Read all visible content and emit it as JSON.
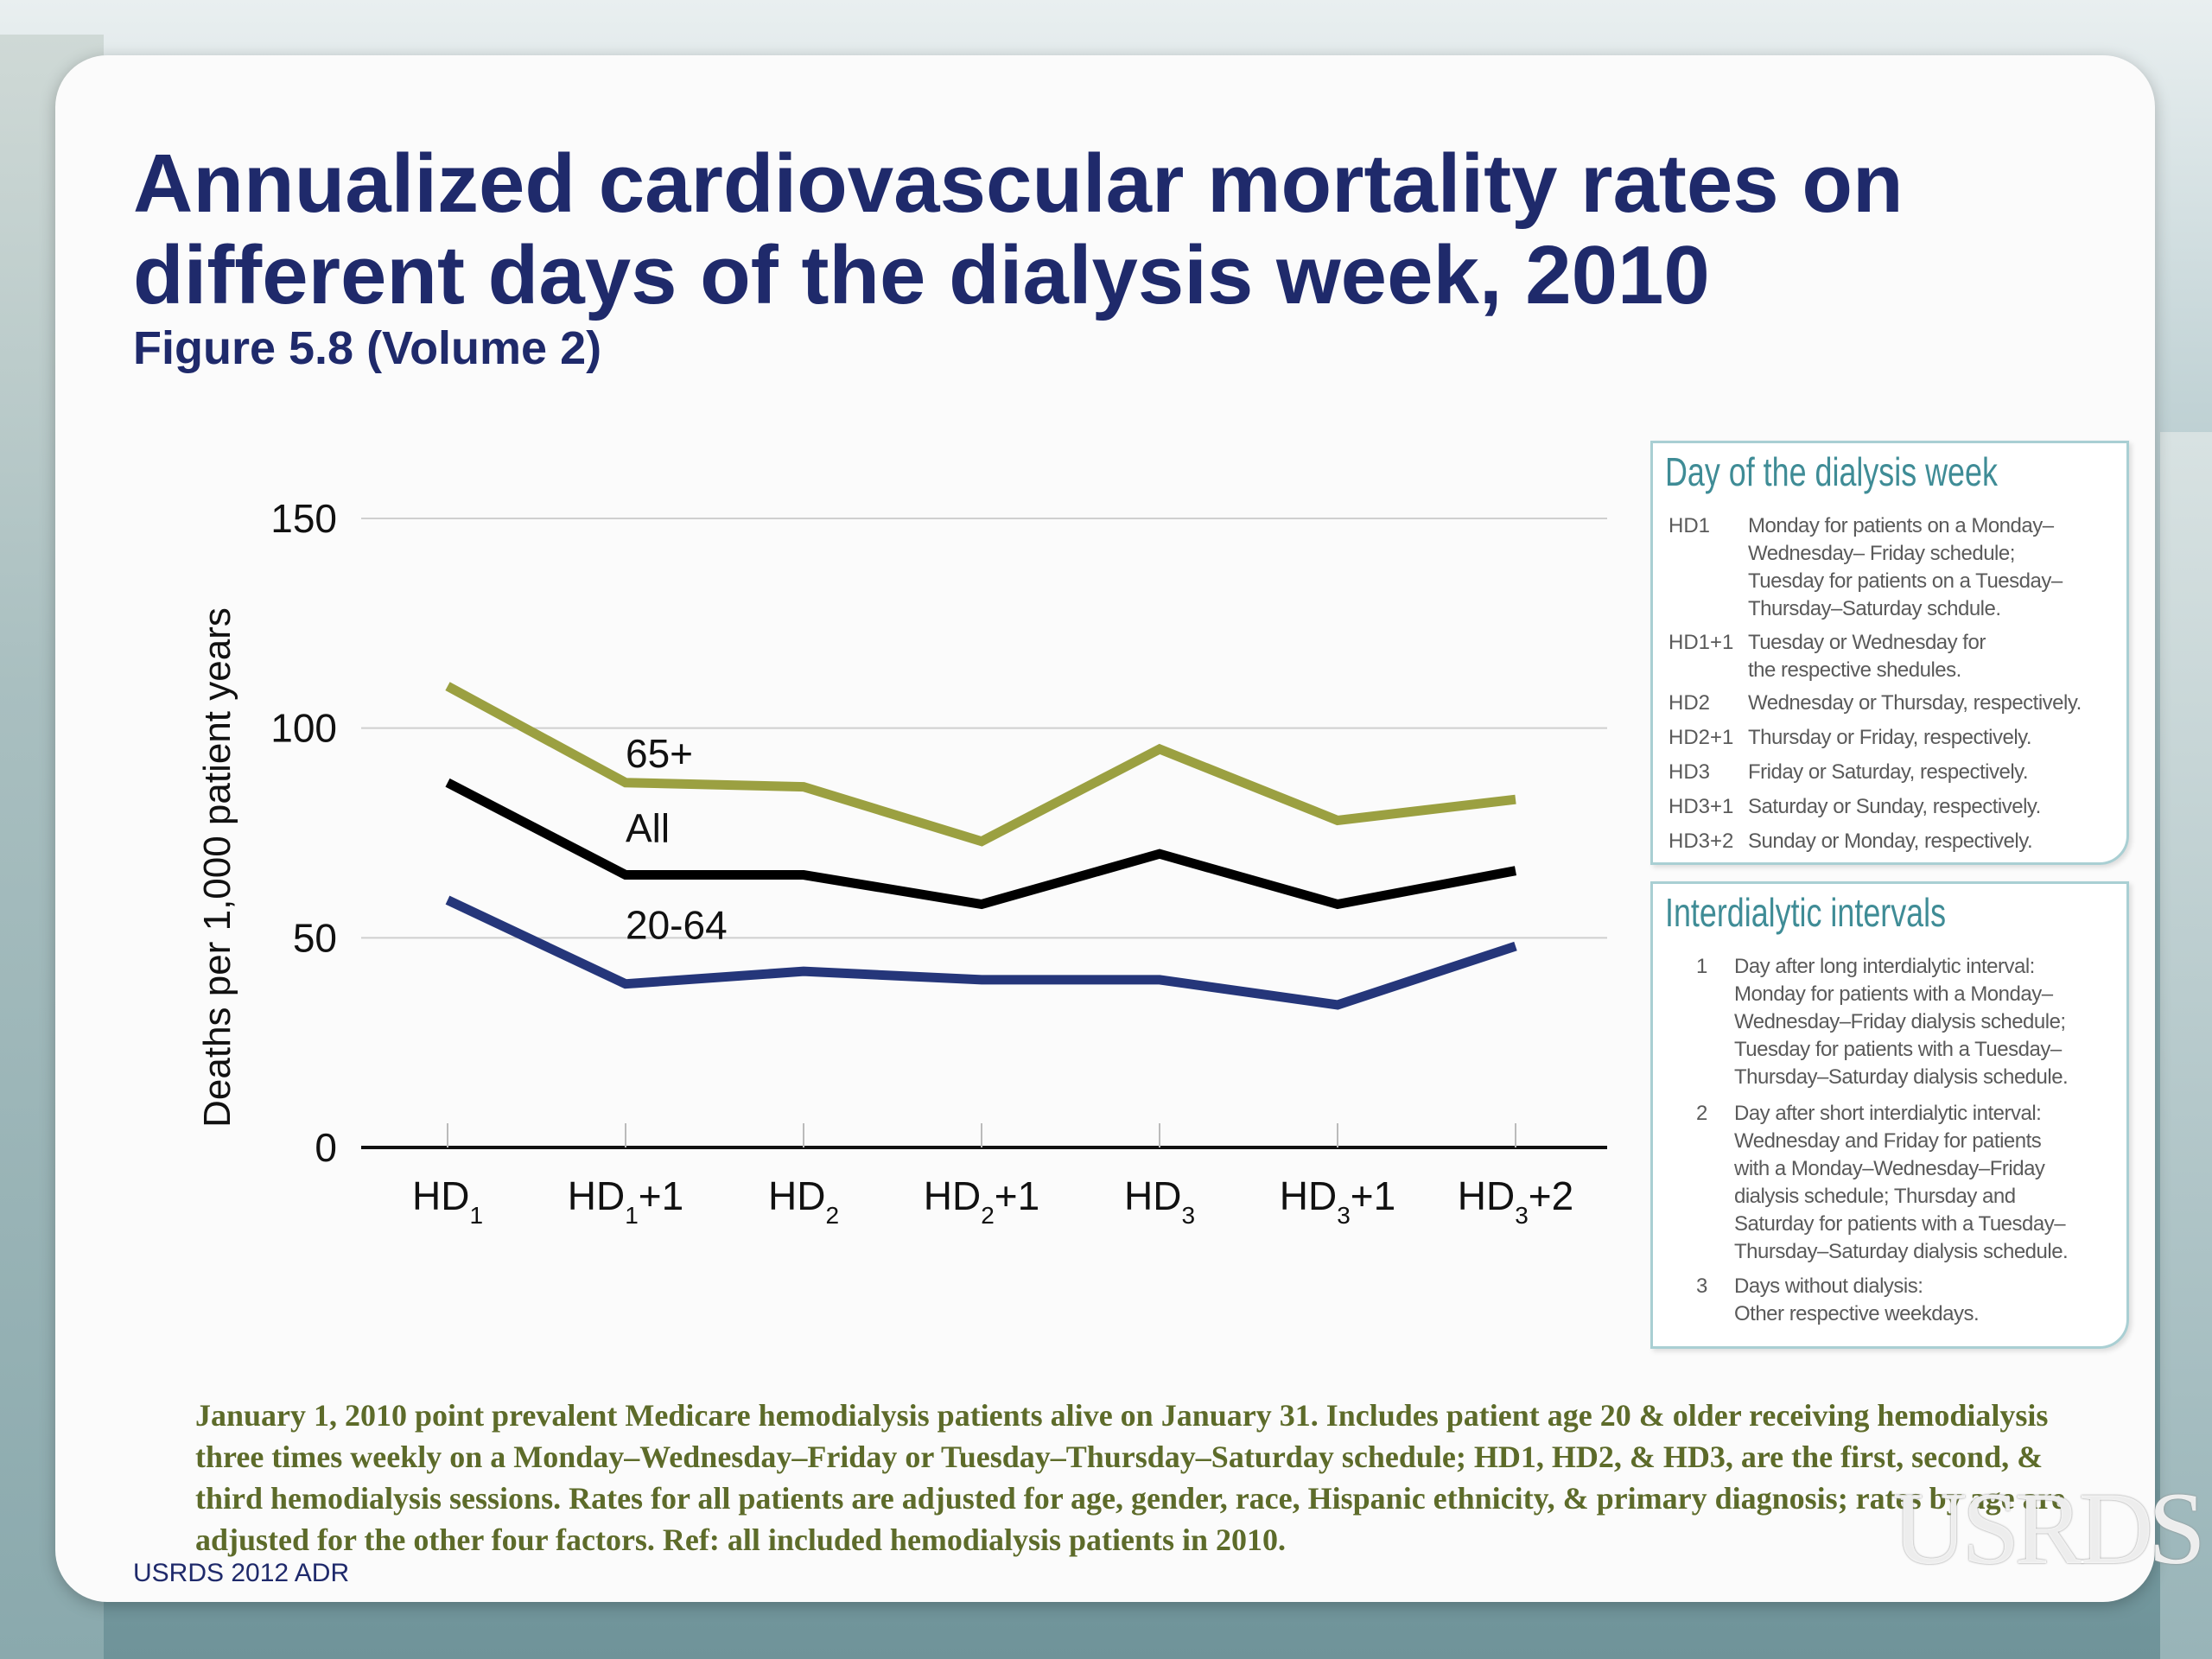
{
  "page": {
    "title": "Annualized cardiovascular mortality rates on different days of the dialysis week, 2010",
    "subtitle": "Figure 5.8 (Volume 2)",
    "footnote": "January 1, 2010 point prevalent Medicare hemodialysis patients alive on January 31. Includes patient age 20 & older receiving hemodialysis three times weekly on a Monday–Wednesday–Friday or Tuesday–Thursday–Saturday schedule; HD1, HD2, & HD3, are the first, second, & third hemodialysis sessions. Rates for all patients are adjusted for age, gender, race, Hispanic ethnicity, & primary diagnosis; rates by age are adjusted for the other four factors. Ref: all included hemodialysis patients in 2010.",
    "source": "USRDS 2012 ADR",
    "logo_text": "USRDS"
  },
  "legend_day": {
    "title": "Day of the dialysis week",
    "rows": [
      {
        "code": "HD1",
        "desc": "Monday for patients on a Monday–\nWednesday– Friday schedule;\nTuesday for patients on a Tuesday–\nThursday–Saturday schdule."
      },
      {
        "code": "HD1+1",
        "desc": "Tuesday or Wednesday for\nthe respective shedules."
      },
      {
        "code": "HD2",
        "desc": "Wednesday or Thursday, respectively."
      },
      {
        "code": "HD2+1",
        "desc": "Thursday or Friday, respectively."
      },
      {
        "code": "HD3",
        "desc": "Friday or Saturday, respectively."
      },
      {
        "code": "HD3+1",
        "desc": "Saturday or Sunday, respectively."
      },
      {
        "code": "HD3+2",
        "desc": "Sunday or Monday, respectively."
      }
    ]
  },
  "legend_int": {
    "title": "Interdialytic intervals",
    "rows": [
      {
        "num": "1",
        "desc": "Day after long interdialytic interval:\nMonday for patients with a Monday–\nWednesday–Friday dialysis schedule;\nTuesday for patients with a Tuesday–\nThursday–Saturday dialysis schedule."
      },
      {
        "num": "2",
        "desc": "Day after short interdialytic interval:\nWednesday and Friday for patients\nwith a Monday–Wednesday–Friday\ndialysis schedule; Thursday and\nSaturday for patients with a Tuesday–\nThursday–Saturday dialysis schedule."
      },
      {
        "num": "3",
        "desc": "Days without dialysis:\nOther respective weekdays."
      }
    ]
  },
  "chart_data": {
    "type": "line",
    "ylabel": "Deaths per 1,000 patient years",
    "ylim": [
      0,
      150
    ],
    "yticks": [
      0,
      50,
      100,
      150
    ],
    "grid": true,
    "categories": [
      {
        "base": "HD",
        "sub": "1",
        "suffix": ""
      },
      {
        "base": "HD",
        "sub": "1",
        "suffix": "+1"
      },
      {
        "base": "HD",
        "sub": "2",
        "suffix": ""
      },
      {
        "base": "HD",
        "sub": "2",
        "suffix": "+1"
      },
      {
        "base": "HD",
        "sub": "3",
        "suffix": ""
      },
      {
        "base": "HD",
        "sub": "3",
        "suffix": "+1"
      },
      {
        "base": "HD",
        "sub": "3",
        "suffix": "+2"
      }
    ],
    "series": [
      {
        "name": "65+",
        "color": "#9ba041",
        "values": [
          110,
          87,
          86,
          73,
          95,
          78,
          83
        ]
      },
      {
        "name": "All",
        "color": "#000000",
        "values": [
          87,
          65,
          65,
          58,
          70,
          58,
          66
        ]
      },
      {
        "name": "20-64",
        "color": "#25367a",
        "values": [
          59,
          39,
          42,
          40,
          40,
          34,
          48
        ]
      }
    ]
  }
}
